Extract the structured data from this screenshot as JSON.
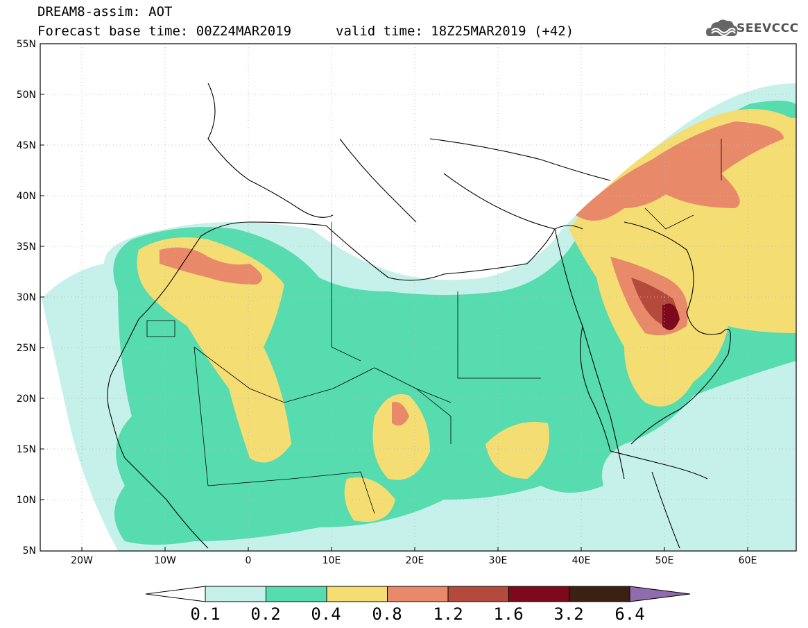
{
  "header": {
    "title": "DREAM8-assim: AOT",
    "base_time": "Forecast base time: 00Z24MAR2019",
    "valid_time": "valid time: 18Z25MAR2019 (+42)",
    "logo_text": "SEEVCCC"
  },
  "map": {
    "lat_labels": [
      "55N",
      "50N",
      "45N",
      "40N",
      "35N",
      "30N",
      "25N",
      "20N",
      "15N",
      "10N",
      "5N"
    ],
    "lon_labels": [
      "20W",
      "10W",
      "0",
      "10E",
      "20E",
      "30E",
      "40E",
      "50E",
      "60E"
    ]
  },
  "legend": {
    "levels": [
      "0.1",
      "0.2",
      "0.4",
      "0.8",
      "1.2",
      "1.6",
      "3.2",
      "6.4"
    ],
    "colors": [
      "#c6f0ea",
      "#56dcae",
      "#f4dd73",
      "#e8896a",
      "#b34a3c",
      "#7c0a1c",
      "#3c2012",
      "#8f6cad"
    ]
  }
}
